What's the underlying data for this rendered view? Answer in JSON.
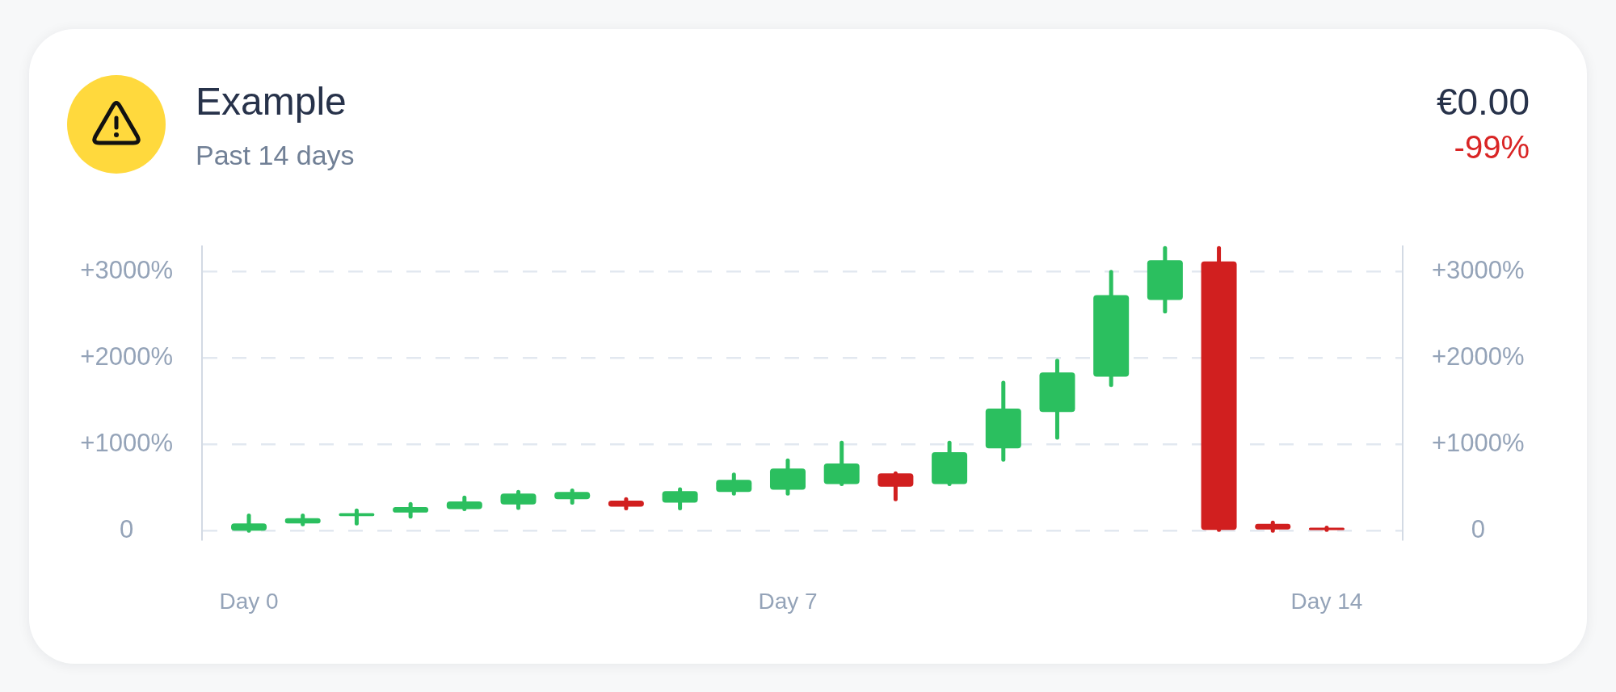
{
  "chart_data": {
    "type": "candlestick",
    "title": "Example",
    "subtitle": "Past 14 days",
    "annotations": [
      "€0.00",
      "-99%"
    ],
    "categories": [
      "Day 0",
      null,
      null,
      null,
      null,
      null,
      null,
      null,
      null,
      null,
      "Day 7",
      null,
      null,
      null,
      null,
      null,
      null,
      null,
      null,
      null,
      "Day 14"
    ],
    "ohlc": [
      [
        0,
        175,
        0,
        85
      ],
      [
        85,
        175,
        75,
        145
      ],
      [
        170,
        235,
        85,
        205
      ],
      [
        210,
        310,
        165,
        275
      ],
      [
        250,
        385,
        250,
        340
      ],
      [
        305,
        450,
        265,
        430
      ],
      [
        365,
        465,
        325,
        450
      ],
      [
        350,
        365,
        260,
        280
      ],
      [
        325,
        480,
        260,
        460
      ],
      [
        450,
        650,
        430,
        590
      ],
      [
        475,
        815,
        430,
        720
      ],
      [
        540,
        1020,
        540,
        780
      ],
      [
        665,
        665,
        365,
        510
      ],
      [
        540,
        1020,
        540,
        910
      ],
      [
        955,
        1715,
        825,
        1415
      ],
      [
        1375,
        1970,
        1080,
        1835
      ],
      [
        1785,
        3000,
        1690,
        2730
      ],
      [
        2675,
        3275,
        2540,
        3135
      ],
      [
        3120,
        3275,
        10,
        10
      ],
      [
        80,
        95,
        0,
        15
      ],
      [
        35,
        35,
        10,
        10
      ]
    ],
    "colors": [
      "#2bbf5f",
      "#2bbf5f",
      "#2bbf5f",
      "#2bbf5f",
      "#2bbf5f",
      "#2bbf5f",
      "#2bbf5f",
      "#d11f1f",
      "#2bbf5f",
      "#2bbf5f",
      "#2bbf5f",
      "#2bbf5f",
      "#d11f1f",
      "#2bbf5f",
      "#2bbf5f",
      "#2bbf5f",
      "#2bbf5f",
      "#2bbf5f",
      "#d11f1f",
      "#d11f1f",
      "#d11f1f"
    ],
    "ylim": [
      -100,
      3300
    ],
    "yticks": [
      0,
      {
        "value": 1000,
        "label": "+1000%"
      },
      {
        "value": 2000,
        "label": "+2000%"
      },
      {
        "value": 3000,
        "label": "+3000%"
      }
    ],
    "y2lim": [
      -100,
      3300
    ],
    "y2ticks": [
      0,
      {
        "value": 1000,
        "label": "+1000%"
      },
      {
        "value": 2000,
        "label": "+2000%"
      },
      {
        "value": 3000,
        "label": "+3000%"
      }
    ],
    "grid": "y"
  }
}
